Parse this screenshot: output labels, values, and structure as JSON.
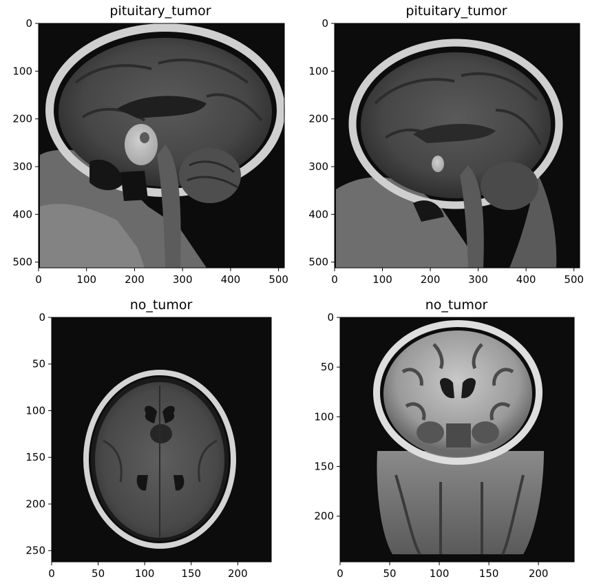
{
  "figure": {
    "panels": [
      {
        "title": "pituitary_tumor",
        "view": "sagittal",
        "image_width": 512,
        "image_height": 512,
        "xticks": [
          0,
          100,
          200,
          300,
          400,
          500
        ],
        "yticks": [
          0,
          100,
          200,
          300,
          400,
          500
        ]
      },
      {
        "title": "pituitary_tumor",
        "view": "sagittal",
        "image_width": 512,
        "image_height": 512,
        "xticks": [
          0,
          100,
          200,
          300,
          400,
          500
        ],
        "yticks": [
          0,
          100,
          200,
          300,
          400,
          500
        ]
      },
      {
        "title": "no_tumor",
        "view": "axial",
        "image_width": 236,
        "image_height": 262,
        "xticks": [
          0,
          50,
          100,
          150,
          200
        ],
        "yticks": [
          0,
          50,
          100,
          150,
          200,
          250
        ]
      },
      {
        "title": "no_tumor",
        "view": "coronal",
        "image_width": 236,
        "image_height": 246,
        "xticks": [
          0,
          50,
          100,
          150,
          200
        ],
        "yticks": [
          0,
          50,
          100,
          150,
          200
        ]
      }
    ]
  }
}
